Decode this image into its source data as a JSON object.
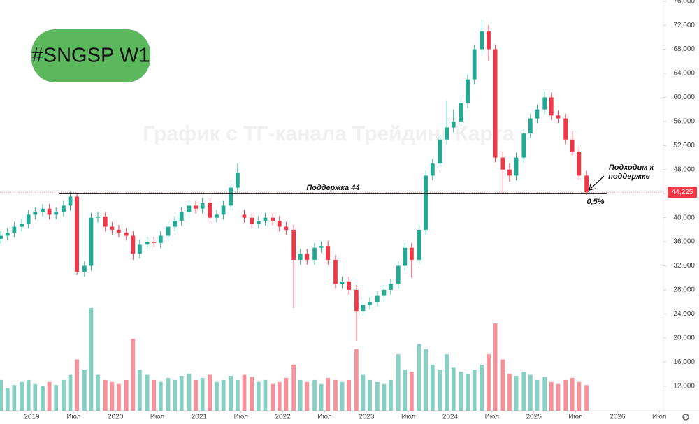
{
  "chart_data": {
    "type": "candlestick",
    "title": "#SNGSP W1",
    "watermark": "График с ТГ-канала Трейдинг Карта",
    "up_color": "#22ab94",
    "down_color": "#f23645",
    "x": [
      2018.63,
      2018.71,
      2018.79,
      2018.88,
      2018.96,
      2019.04,
      2019.13,
      2019.21,
      2019.29,
      2019.38,
      2019.46,
      2019.54,
      2019.63,
      2019.71,
      2019.79,
      2019.88,
      2019.96,
      2020.04,
      2020.13,
      2020.21,
      2020.29,
      2020.38,
      2020.46,
      2020.54,
      2020.63,
      2020.71,
      2020.79,
      2020.88,
      2020.96,
      2021.04,
      2021.13,
      2021.21,
      2021.29,
      2021.38,
      2021.46,
      2021.54,
      2021.63,
      2021.71,
      2021.79,
      2021.88,
      2021.96,
      2022.04,
      2022.13,
      2022.21,
      2022.29,
      2022.38,
      2022.46,
      2022.54,
      2022.63,
      2022.71,
      2022.79,
      2022.88,
      2022.96,
      2023.04,
      2023.13,
      2023.21,
      2023.29,
      2023.38,
      2023.46,
      2023.54,
      2023.63,
      2023.71,
      2023.79,
      2023.88,
      2023.96,
      2024.04,
      2024.13,
      2024.21,
      2024.29,
      2024.38,
      2024.46,
      2024.54,
      2024.63,
      2024.71,
      2024.79,
      2024.88,
      2024.96,
      2025.04,
      2025.13,
      2025.21,
      2025.29,
      2025.38,
      2025.46,
      2025.54,
      2025.63
    ],
    "open": [
      36500,
      37000,
      37500,
      38500,
      39000,
      40500,
      41000,
      41500,
      40500,
      41000,
      42000,
      43500,
      31000,
      32000,
      40000,
      40200,
      38500,
      38000,
      37500,
      37000,
      34000,
      35500,
      36000,
      35800,
      37000,
      38500,
      39500,
      41000,
      42000,
      41500,
      42500,
      40000,
      40500,
      42000,
      45000,
      40500,
      40000,
      39000,
      39500,
      40000,
      39500,
      38500,
      38000,
      33000,
      34000,
      33000,
      35000,
      35300,
      33000,
      29000,
      29400,
      28000,
      24500,
      25500,
      26000,
      27000,
      28000,
      29000,
      32000,
      35000,
      33000,
      38000,
      47000,
      49000,
      53000,
      55000,
      56000,
      59000,
      63000,
      68000,
      71000,
      68000,
      50000,
      48000,
      47000,
      50000,
      54000,
      56500,
      58000,
      60000,
      57000,
      56500,
      53000,
      51000,
      47000
    ],
    "high": [
      37800,
      38300,
      39300,
      39800,
      41300,
      41800,
      42300,
      42300,
      41800,
      42800,
      44300,
      44000,
      32800,
      40800,
      41000,
      41000,
      39300,
      38800,
      38300,
      37800,
      36300,
      36800,
      36800,
      37800,
      39300,
      40300,
      41800,
      42800,
      42800,
      43300,
      43300,
      41300,
      42800,
      45800,
      49000,
      41300,
      40800,
      40300,
      40800,
      40800,
      40300,
      39300,
      38800,
      34800,
      34800,
      35800,
      36100,
      36100,
      33800,
      30200,
      30200,
      28800,
      26300,
      26800,
      27800,
      28800,
      29800,
      32800,
      35800,
      35800,
      38800,
      47800,
      49800,
      53800,
      59500,
      58000,
      59800,
      63800,
      68800,
      73000,
      72000,
      68800,
      51000,
      49000,
      50800,
      54800,
      57300,
      58800,
      61000,
      60800,
      57800,
      57300,
      54500,
      51800,
      47800
    ],
    "low": [
      35700,
      36200,
      36700,
      37700,
      38200,
      39700,
      40200,
      39700,
      39700,
      40200,
      41200,
      30500,
      30200,
      31200,
      39200,
      37700,
      37200,
      36700,
      36200,
      33000,
      33200,
      34700,
      35000,
      35000,
      36200,
      37700,
      38700,
      40200,
      40700,
      40700,
      39200,
      39200,
      39700,
      41200,
      44200,
      39200,
      38200,
      38200,
      38700,
      38700,
      37700,
      37200,
      25000,
      32200,
      32200,
      32200,
      34200,
      32200,
      28200,
      28200,
      27200,
      19500,
      23700,
      24700,
      25200,
      26200,
      27200,
      28200,
      31200,
      30000,
      32200,
      37200,
      46200,
      48200,
      52200,
      54200,
      55200,
      58200,
      62200,
      67200,
      66000,
      49200,
      44000,
      46000,
      46200,
      49200,
      53200,
      55700,
      57200,
      56200,
      55700,
      52200,
      50200,
      46200,
      43800
    ],
    "close": [
      37000,
      37500,
      38500,
      39000,
      40500,
      41000,
      41500,
      40500,
      41000,
      42000,
      43500,
      31000,
      32000,
      40000,
      40200,
      38500,
      38000,
      37500,
      37000,
      34000,
      35500,
      36000,
      35800,
      37000,
      38500,
      39500,
      41000,
      42000,
      41500,
      42500,
      40000,
      40500,
      42000,
      45000,
      47500,
      40000,
      39000,
      39500,
      40000,
      39500,
      38500,
      38000,
      33000,
      34000,
      33000,
      35000,
      35300,
      33000,
      29000,
      29400,
      28000,
      24500,
      25500,
      26000,
      27000,
      28000,
      29000,
      32000,
      35000,
      33000,
      38000,
      47000,
      49000,
      53000,
      55000,
      56000,
      59000,
      63000,
      68000,
      71000,
      68000,
      50000,
      48000,
      47000,
      50000,
      54000,
      56500,
      58000,
      60000,
      57000,
      56500,
      53000,
      51000,
      47000,
      44225
    ],
    "volume": [
      30,
      22,
      25,
      28,
      30,
      26,
      24,
      28,
      25,
      30,
      35,
      50,
      40,
      100,
      35,
      30,
      28,
      26,
      30,
      70,
      40,
      35,
      30,
      28,
      32,
      30,
      34,
      36,
      30,
      32,
      35,
      28,
      30,
      34,
      30,
      35,
      33,
      28,
      30,
      26,
      28,
      32,
      45,
      30,
      28,
      30,
      26,
      32,
      30,
      28,
      30,
      60,
      35,
      30,
      28,
      26,
      30,
      55,
      40,
      38,
      65,
      60,
      45,
      40,
      55,
      42,
      38,
      36,
      40,
      45,
      55,
      85,
      50,
      36,
      34,
      38,
      35,
      30,
      33,
      28,
      26,
      30,
      32,
      28,
      25
    ],
    "xlim": [
      2018.62,
      2026.54
    ],
    "xticks": [
      {
        "value": 2019,
        "label": "2019"
      },
      {
        "value": 2019.5,
        "label": "Июл"
      },
      {
        "value": 2020,
        "label": "2020"
      },
      {
        "value": 2020.5,
        "label": "Июл"
      },
      {
        "value": 2021,
        "label": "2021"
      },
      {
        "value": 2021.5,
        "label": "Июл"
      },
      {
        "value": 2022,
        "label": "2022"
      },
      {
        "value": 2022.5,
        "label": "Июл"
      },
      {
        "value": 2023,
        "label": "2023"
      },
      {
        "value": 2023.5,
        "label": "Июл"
      },
      {
        "value": 2024,
        "label": "2024"
      },
      {
        "value": 2024.5,
        "label": "Июл"
      },
      {
        "value": 2025,
        "label": "2025"
      },
      {
        "value": 2025.5,
        "label": "Июл"
      },
      {
        "value": 2026,
        "label": "2026"
      },
      {
        "value": 2026.5,
        "label": "Июл"
      }
    ],
    "ylim": [
      7900,
      76200
    ],
    "yticks": [
      {
        "value": 12000,
        "label": "12,000"
      },
      {
        "value": 16000,
        "label": "16,000"
      },
      {
        "value": 20000,
        "label": "20,000"
      },
      {
        "value": 24000,
        "label": "24,000"
      },
      {
        "value": 28000,
        "label": "28,000"
      },
      {
        "value": 32000,
        "label": "32,000"
      },
      {
        "value": 36000,
        "label": "36,000"
      },
      {
        "value": 40000,
        "label": "40,000"
      },
      {
        "value": 44000,
        "label": "44,000"
      },
      {
        "value": 48000,
        "label": "48,000"
      },
      {
        "value": 52000,
        "label": "52,000"
      },
      {
        "value": 56000,
        "label": "56,000"
      },
      {
        "value": 60000,
        "label": "60,000"
      },
      {
        "value": 64000,
        "label": "64,000"
      },
      {
        "value": 68000,
        "label": "68,000"
      },
      {
        "value": 72000,
        "label": "72,000"
      },
      {
        "value": 76000,
        "label": "76,000"
      }
    ],
    "y2lim": [
      0,
      400
    ],
    "last_price": {
      "value": 44225,
      "label": "44,225"
    },
    "support": {
      "text": "Поддержка 44",
      "value": 44000,
      "x": [
        2019.33,
        2025.87
      ]
    },
    "note": {
      "lines": [
        "Подходим к",
        "поддержке"
      ],
      "distance": "0,5%"
    }
  }
}
